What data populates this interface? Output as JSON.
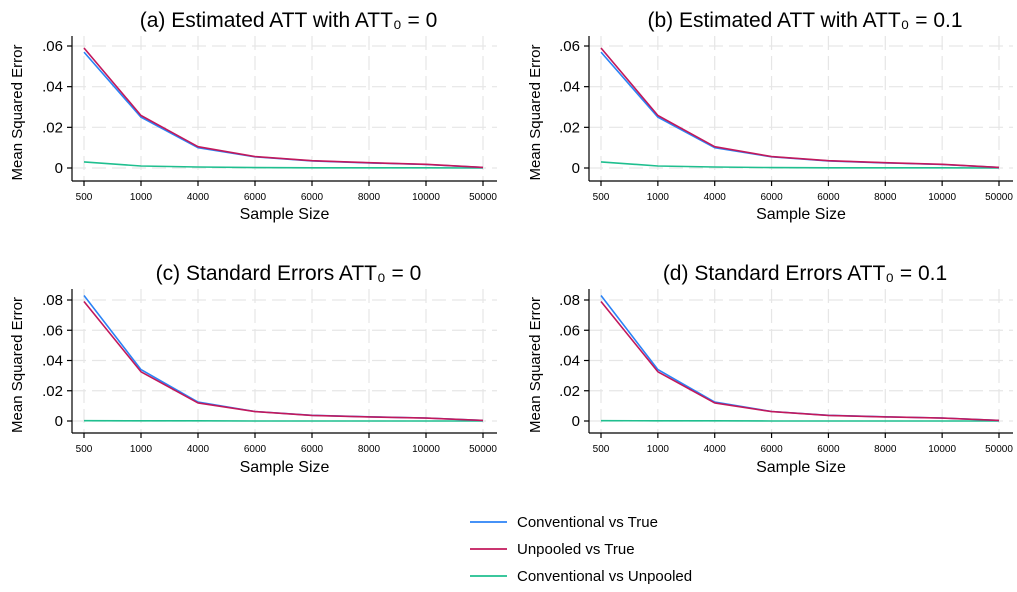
{
  "colors": {
    "conventional_vs_true": "#2b83f6",
    "unpooled_vs_true": "#c2185b",
    "conventional_vs_unpooled": "#1fbf8f",
    "grid": "#e6e6e6",
    "axis": "#000000"
  },
  "legend": {
    "placement": "bottom-center",
    "items": [
      "Conventional vs True",
      "Unpooled vs True",
      "Conventional vs Unpooled"
    ]
  },
  "chart_data": [
    {
      "type": "line",
      "title": "(a) Estimated ATT with ATT₀ = 0",
      "xlabel": "Sample Size",
      "ylabel": "Mean Squared Error",
      "categories": [
        "500",
        "1000",
        "4000",
        "6000",
        "6000",
        "8000",
        "10000",
        "50000"
      ],
      "yticks": [
        ".06",
        ".04",
        ".02",
        "0"
      ],
      "ylim": [
        0,
        0.06
      ],
      "grid": true,
      "series": [
        {
          "name": "Conventional vs True",
          "values": [
            0.057,
            0.025,
            0.01,
            0.0055,
            0.0035,
            0.0025,
            0.0017,
            0.0003
          ]
        },
        {
          "name": "Unpooled vs True",
          "values": [
            0.059,
            0.0258,
            0.0105,
            0.0056,
            0.0036,
            0.0026,
            0.0018,
            0.0003
          ]
        },
        {
          "name": "Conventional vs Unpooled",
          "values": [
            0.003,
            0.001,
            0.0005,
            0.0002,
            0.0001,
            0.0001,
            0.0001,
            0.0
          ]
        }
      ]
    },
    {
      "type": "line",
      "title": "(b) Estimated ATT with ATT₀ = 0.1",
      "xlabel": "Sample Size",
      "ylabel": "Mean Squared Error",
      "categories": [
        "500",
        "1000",
        "4000",
        "6000",
        "6000",
        "8000",
        "10000",
        "50000"
      ],
      "yticks": [
        ".06",
        ".04",
        ".02",
        "0"
      ],
      "ylim": [
        0,
        0.06
      ],
      "grid": true,
      "series": [
        {
          "name": "Conventional vs True",
          "values": [
            0.057,
            0.025,
            0.01,
            0.0055,
            0.0035,
            0.0025,
            0.0017,
            0.0003
          ]
        },
        {
          "name": "Unpooled vs True",
          "values": [
            0.059,
            0.0258,
            0.0105,
            0.0056,
            0.0036,
            0.0026,
            0.0018,
            0.0003
          ]
        },
        {
          "name": "Conventional vs Unpooled",
          "values": [
            0.003,
            0.001,
            0.0005,
            0.0002,
            0.0001,
            0.0001,
            0.0001,
            0.0
          ]
        }
      ]
    },
    {
      "type": "line",
      "title": "(c) Standard Errors ATT₀ = 0",
      "xlabel": "Sample Size",
      "ylabel": "Mean Squared Error",
      "categories": [
        "500",
        "1000",
        "4000",
        "6000",
        "6000",
        "8000",
        "10000",
        "50000"
      ],
      "yticks": [
        ".08",
        ".06",
        ".04",
        ".02",
        "0"
      ],
      "ylim": [
        0,
        0.08
      ],
      "grid": true,
      "series": [
        {
          "name": "Conventional vs True",
          "values": [
            0.083,
            0.034,
            0.0125,
            0.0063,
            0.0038,
            0.0028,
            0.002,
            0.0004
          ]
        },
        {
          "name": "Unpooled vs True",
          "values": [
            0.079,
            0.0325,
            0.012,
            0.0062,
            0.0037,
            0.0027,
            0.0019,
            0.0004
          ]
        },
        {
          "name": "Conventional vs Unpooled",
          "values": [
            0.0002,
            0.0001,
            0.0001,
            0.0,
            0.0,
            0.0,
            0.0,
            0.0
          ]
        }
      ]
    },
    {
      "type": "line",
      "title": "(d) Standard Errors ATT₀ = 0.1",
      "xlabel": "Sample Size",
      "ylabel": "Mean Squared Error",
      "categories": [
        "500",
        "1000",
        "4000",
        "6000",
        "6000",
        "8000",
        "10000",
        "50000"
      ],
      "yticks": [
        ".08",
        ".06",
        ".04",
        ".02",
        "0"
      ],
      "ylim": [
        0,
        0.08
      ],
      "grid": true,
      "series": [
        {
          "name": "Conventional vs True",
          "values": [
            0.083,
            0.034,
            0.0125,
            0.0063,
            0.0038,
            0.0028,
            0.002,
            0.0004
          ]
        },
        {
          "name": "Unpooled vs True",
          "values": [
            0.079,
            0.0325,
            0.012,
            0.0062,
            0.0037,
            0.0027,
            0.0019,
            0.0004
          ]
        },
        {
          "name": "Conventional vs Unpooled",
          "values": [
            0.0002,
            0.0001,
            0.0001,
            0.0,
            0.0,
            0.0,
            0.0,
            0.0
          ]
        }
      ]
    }
  ]
}
